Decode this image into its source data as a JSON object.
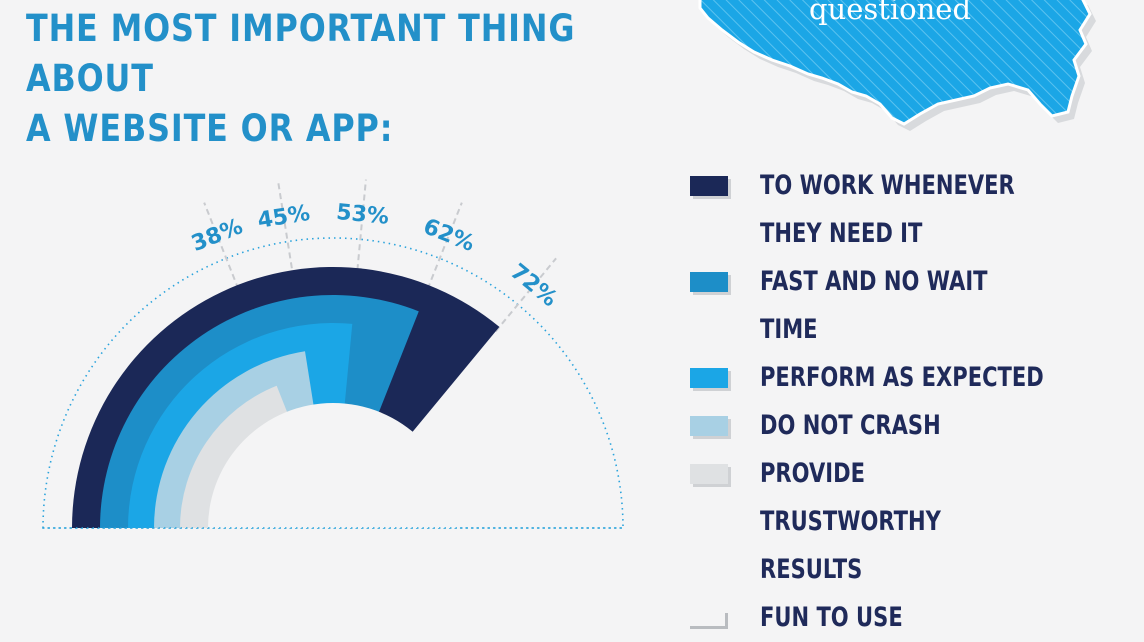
{
  "header": {
    "title_line1": "THE MOST IMPORTANT THING ABOUT",
    "title_line2": "A WEBSITE OR APP:"
  },
  "map_badge": {
    "text": "questioned"
  },
  "colors": {
    "navy": "#1b2857",
    "steel_blue": "#1d8ec8",
    "bright_blue": "#1ba6e6",
    "light_blue": "#a8d0e4",
    "light_gray": "#dfe1e3",
    "percent_label": "#2390c9",
    "map_blue": "#1ba6e6"
  },
  "chart_data": {
    "type": "radial-bar",
    "title": "THE MOST IMPORTANT THING ABOUT A WEBSITE OR APP:",
    "max_value": 100,
    "series": [
      {
        "name": "TO WORK WHENEVER THEY NEED IT",
        "value": 72,
        "label": "72%",
        "color": "#1b2857"
      },
      {
        "name": "FAST AND NO WAIT TIME",
        "value": 62,
        "label": "62%",
        "color": "#1d8ec8"
      },
      {
        "name": "PERFORM AS EXPECTED",
        "value": 53,
        "label": "53%",
        "color": "#1ba6e6"
      },
      {
        "name": "DO NOT CRASH",
        "value": 45,
        "label": "45%",
        "color": "#a8d0e4"
      },
      {
        "name": "PROVIDE TRUSTWORTHY RESULTS",
        "value": 38,
        "label": "38%",
        "color": "#dfe1e3"
      },
      {
        "name": "FUN TO USE",
        "value": null,
        "label": "",
        "color": null
      }
    ]
  },
  "legend": {
    "items": [
      {
        "label": "TO WORK WHENEVER THEY NEED IT",
        "color": "#1b2857"
      },
      {
        "label": "FAST AND NO WAIT TIME",
        "color": "#1d8ec8"
      },
      {
        "label": "PERFORM AS EXPECTED",
        "color": "#1ba6e6"
      },
      {
        "label": "DO NOT CRASH",
        "color": "#a8d0e4"
      },
      {
        "label": "PROVIDE TRUSTWORTHY RESULTS",
        "color": "#dfe1e3"
      },
      {
        "label": "FUN TO USE",
        "color": "outline"
      }
    ]
  }
}
